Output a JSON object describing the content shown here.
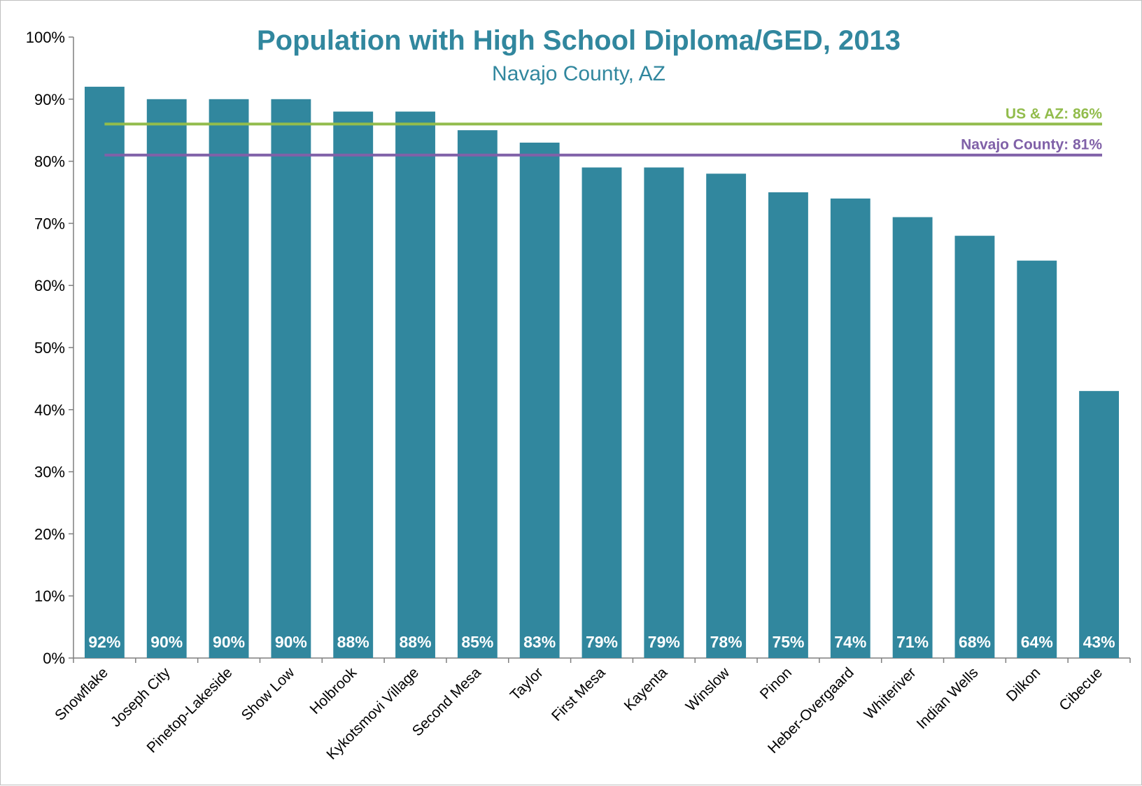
{
  "colors": {
    "bar": "#31879e",
    "title": "#31879e",
    "us_az_line": "#92bc4c",
    "navajo_line": "#8061a8",
    "axis": "#7f7f7f"
  },
  "chart_data": {
    "type": "bar",
    "title": "Population with High School Diploma/GED, 2013",
    "subtitle": "Navajo County, AZ",
    "xlabel": "",
    "ylabel": "",
    "ylim": [
      0,
      100
    ],
    "yticks": [
      "0%",
      "10%",
      "20%",
      "30%",
      "40%",
      "50%",
      "60%",
      "70%",
      "80%",
      "90%",
      "100%"
    ],
    "grid": false,
    "categories": [
      "Snowflake",
      "Joseph City",
      "Pinetop-Lakeside",
      "Show Low",
      "Holbrook",
      "Kykotsmovi Village",
      "Second Mesa",
      "Taylor",
      "First Mesa",
      "Kayenta",
      "Winslow",
      "Pinon",
      "Heber-Overgaard",
      "Whiteriver",
      "Indian Wells",
      "Dilkon",
      "Cibecue"
    ],
    "values": [
      92,
      90,
      90,
      90,
      88,
      88,
      85,
      83,
      79,
      79,
      78,
      75,
      74,
      71,
      68,
      64,
      43
    ],
    "value_labels": [
      "92%",
      "90%",
      "90%",
      "90%",
      "88%",
      "88%",
      "85%",
      "83%",
      "79%",
      "79%",
      "78%",
      "75%",
      "74%",
      "71%",
      "68%",
      "64%",
      "43%"
    ],
    "reference_lines": [
      {
        "label": "US & AZ: 86%",
        "value": 86,
        "color": "#92bc4c"
      },
      {
        "label": "Navajo County: 81%",
        "value": 81,
        "color": "#8061a8"
      }
    ]
  }
}
